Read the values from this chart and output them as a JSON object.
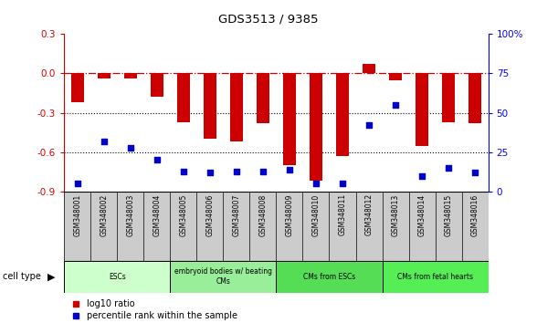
{
  "title": "GDS3513 / 9385",
  "samples": [
    "GSM348001",
    "GSM348002",
    "GSM348003",
    "GSM348004",
    "GSM348005",
    "GSM348006",
    "GSM348007",
    "GSM348008",
    "GSM348009",
    "GSM348010",
    "GSM348011",
    "GSM348012",
    "GSM348013",
    "GSM348014",
    "GSM348015",
    "GSM348016"
  ],
  "log10_ratio": [
    -0.22,
    -0.04,
    -0.04,
    -0.18,
    -0.37,
    -0.5,
    -0.52,
    -0.38,
    -0.7,
    -0.82,
    -0.63,
    0.07,
    -0.05,
    -0.55,
    -0.37,
    -0.38
  ],
  "percentile_rank": [
    5,
    32,
    28,
    20,
    13,
    12,
    13,
    13,
    14,
    5,
    5,
    42,
    55,
    10,
    15,
    12
  ],
  "cell_type_groups": [
    {
      "label": "ESCs",
      "start": 0,
      "end": 3,
      "color": "#d6f5d6"
    },
    {
      "label": "embryoid bodies w/ beating\nCMs",
      "start": 4,
      "end": 7,
      "color": "#aaeaaa"
    },
    {
      "label": "CMs from ESCs",
      "start": 8,
      "end": 11,
      "color": "#66dd66"
    },
    {
      "label": "CMs from fetal hearts",
      "start": 12,
      "end": 15,
      "color": "#55ee55"
    }
  ],
  "bar_color": "#cc0000",
  "dot_color": "#0000cc",
  "ylim_left": [
    -0.9,
    0.3
  ],
  "ylim_right": [
    0,
    100
  ],
  "yticks_left": [
    -0.9,
    -0.6,
    -0.3,
    0.0,
    0.3
  ],
  "yticks_right": [
    0,
    25,
    50,
    75,
    100
  ],
  "hline_y": 0.0,
  "dotted_lines": [
    -0.3,
    -0.6
  ],
  "background_color": "#ffffff",
  "cell_type_label": "cell type",
  "legend_items": [
    {
      "label": "log10 ratio",
      "color": "#cc0000"
    },
    {
      "label": "percentile rank within the sample",
      "color": "#0000cc"
    }
  ]
}
